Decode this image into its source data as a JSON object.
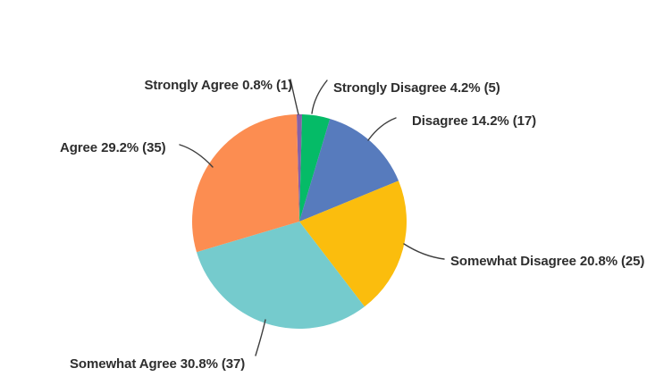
{
  "chart_data": {
    "type": "pie",
    "title": "",
    "direction": "clockwise",
    "start_angle_deg": -1.44,
    "legend_position": "callout-labels",
    "categories": [
      "Strongly Agree",
      "Strongly Disagree",
      "Disagree",
      "Somewhat Disagree",
      "Somewhat Agree",
      "Agree"
    ],
    "values": [
      1,
      5,
      17,
      25,
      37,
      35
    ],
    "percents": [
      0.8,
      4.2,
      14.2,
      20.8,
      30.8,
      29.2
    ],
    "slices": [
      {
        "name": "Strongly Agree",
        "percent": 0.8,
        "count": 1,
        "color": "#8561a8",
        "label": "Strongly Agree 0.8% (1)"
      },
      {
        "name": "Strongly Disagree",
        "percent": 4.2,
        "count": 5,
        "color": "#05bb67",
        "label": "Strongly Disagree 4.2% (5)"
      },
      {
        "name": "Disagree",
        "percent": 14.2,
        "count": 17,
        "color": "#577bbd",
        "label": "Disagree 14.2% (17)"
      },
      {
        "name": "Somewhat Disagree",
        "percent": 20.8,
        "count": 25,
        "color": "#fbbd0d",
        "label": "Somewhat Disagree 20.8% (25)"
      },
      {
        "name": "Somewhat Agree",
        "percent": 30.8,
        "count": 37,
        "color": "#75cbcd",
        "label": "Somewhat Agree 30.8% (37)"
      },
      {
        "name": "Agree",
        "percent": 29.2,
        "count": 35,
        "color": "#fc8d51",
        "label": "Agree 29.2% (35)"
      }
    ]
  },
  "colors": {
    "label_text": "#2e2e2e",
    "leader_line": "#3d3d3d",
    "background": "#ffffff"
  }
}
